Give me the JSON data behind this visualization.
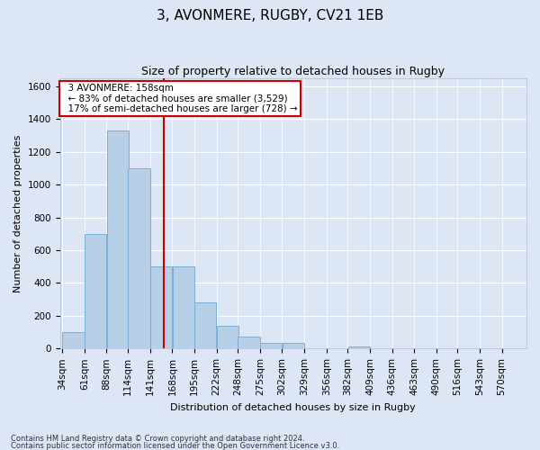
{
  "title": "3, AVONMERE, RUGBY, CV21 1EB",
  "subtitle": "Size of property relative to detached houses in Rugby",
  "xlabel": "Distribution of detached houses by size in Rugby",
  "ylabel": "Number of detached properties",
  "footer_line1": "Contains HM Land Registry data © Crown copyright and database right 2024.",
  "footer_line2": "Contains public sector information licensed under the Open Government Licence v3.0.",
  "annotation_line1": "3 AVONMERE: 158sqm",
  "annotation_line2": "← 83% of detached houses are smaller (3,529)",
  "annotation_line3": "17% of semi-detached houses are larger (728) →",
  "categories": [
    "34sqm",
    "61sqm",
    "88sqm",
    "114sqm",
    "141sqm",
    "168sqm",
    "195sqm",
    "222sqm",
    "248sqm",
    "275sqm",
    "302sqm",
    "329sqm",
    "356sqm",
    "382sqm",
    "409sqm",
    "436sqm",
    "463sqm",
    "490sqm",
    "516sqm",
    "543sqm",
    "570sqm"
  ],
  "bin_left_edges": [
    34,
    61,
    88,
    114,
    141,
    168,
    195,
    222,
    248,
    275,
    302,
    329,
    356,
    382,
    409,
    436,
    463,
    490,
    516,
    543,
    570
  ],
  "bin_width": 27,
  "bar_heights": [
    100,
    700,
    1330,
    1100,
    500,
    500,
    280,
    140,
    75,
    35,
    35,
    0,
    0,
    15,
    0,
    0,
    0,
    0,
    0,
    0,
    0
  ],
  "bar_color": "#b8cfe8",
  "bar_edgecolor": "#7aafd4",
  "vline_x": 158,
  "vline_color": "#cc0000",
  "ylim_max": 1650,
  "yticks": [
    0,
    200,
    400,
    600,
    800,
    1000,
    1200,
    1400,
    1600
  ],
  "bg_color": "#dce6f5",
  "axes_bg_color": "#dce6f5",
  "grid_color": "#ffffff",
  "annotation_box_facecolor": "#ffffff",
  "annotation_border_color": "#cc0000",
  "title_fontsize": 11,
  "subtitle_fontsize": 9,
  "ylabel_fontsize": 8,
  "xlabel_fontsize": 8,
  "tick_fontsize": 7.5,
  "footer_fontsize": 6
}
